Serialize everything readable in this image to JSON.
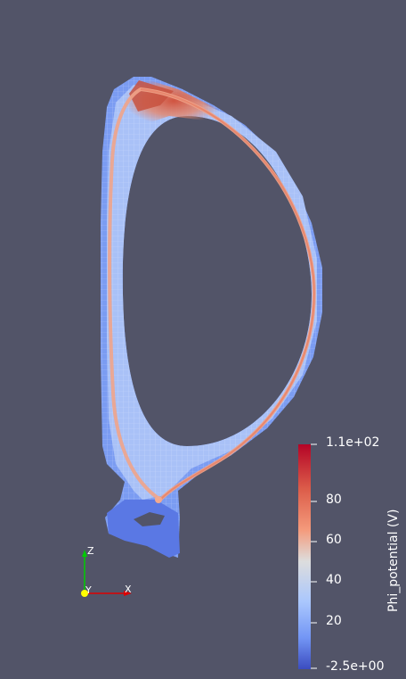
{
  "viewer": {
    "background": "#525468"
  },
  "colorbar": {
    "title": "Phi_potential (V)",
    "max_label": "1.1e+02",
    "min_label": "-2.5e+00",
    "ticks": [
      "80",
      "60",
      "40",
      "20"
    ],
    "colors": [
      "#b40426",
      "#dc5d4a",
      "#f49a7b",
      "#dddddd",
      "#aac7fd",
      "#7396f5",
      "#3b4cc0"
    ]
  },
  "axes": {
    "z": "Z",
    "y": "Y",
    "x": "X",
    "z_color": "#00cc00",
    "y_color": "#ffff00",
    "x_color": "#dd0000"
  }
}
